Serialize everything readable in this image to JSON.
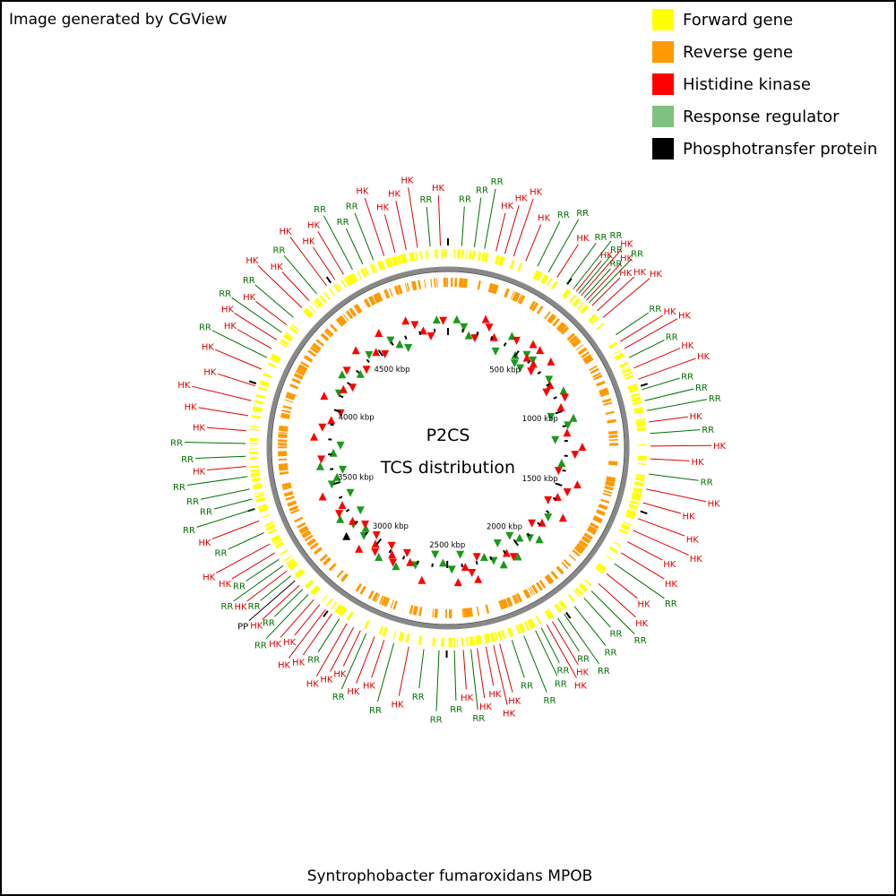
{
  "credit_text": "Image generated by CGView",
  "caption": "Syntrophobacter fumaroxidans MPOB",
  "center": {
    "line1": "P2CS",
    "line2": "TCS distribution"
  },
  "legend": [
    {
      "label": "Forward gene",
      "color": "#ffff00"
    },
    {
      "label": "Reverse gene",
      "color": "#ff9900"
    },
    {
      "label": "Histidine kinase",
      "color": "#ff0000"
    },
    {
      "label": "Response regulator",
      "color": "#80c080"
    },
    {
      "label": "Phosphotransfer protein",
      "color": "#000000"
    }
  ],
  "genome": {
    "length_kbp": 4990
  },
  "ticks": [
    "500 kbp",
    "1000 kbp",
    "1500 kbp",
    "2000 kbp",
    "2500 kbp",
    "3000 kbp",
    "3500 kbp",
    "4000 kbp",
    "4500 kbp"
  ],
  "label_colors": {
    "HK": "#e00000",
    "RR": "#007000",
    "PP": "#000000"
  },
  "features": [
    {
      "kbp": 54,
      "type": "RR"
    },
    {
      "kbp": 104,
      "type": "RR"
    },
    {
      "kbp": 144,
      "type": "RR"
    },
    {
      "kbp": 190,
      "type": "HK"
    },
    {
      "kbp": 226,
      "type": "HK"
    },
    {
      "kbp": 262,
      "type": "HK"
    },
    {
      "kbp": 313,
      "type": "HK"
    },
    {
      "kbp": 364,
      "type": "RR"
    },
    {
      "kbp": 412,
      "type": "RR"
    },
    {
      "kbp": 452,
      "type": "HK"
    },
    {
      "kbp": 497,
      "type": "RR"
    },
    {
      "kbp": 530,
      "type": "RR"
    },
    {
      "kbp": 545,
      "type": "HK"
    },
    {
      "kbp": 558,
      "type": "RR"
    },
    {
      "kbp": 570,
      "type": "HK"
    },
    {
      "kbp": 585,
      "type": "RR"
    },
    {
      "kbp": 598,
      "type": "HK"
    },
    {
      "kbp": 612,
      "type": "RR"
    },
    {
      "kbp": 628,
      "type": "HK"
    },
    {
      "kbp": 657,
      "type": "HK"
    },
    {
      "kbp": 692,
      "type": "HK"
    },
    {
      "kbp": 776,
      "type": "RR"
    },
    {
      "kbp": 808,
      "type": "HK"
    },
    {
      "kbp": 840,
      "type": "HK"
    },
    {
      "kbp": 880,
      "type": "RR"
    },
    {
      "kbp": 925,
      "type": "HK"
    },
    {
      "kbp": 972,
      "type": "HK"
    },
    {
      "kbp": 1015,
      "type": "RR"
    },
    {
      "kbp": 1060,
      "type": "RR"
    },
    {
      "kbp": 1100,
      "type": "RR"
    },
    {
      "kbp": 1145,
      "type": "HK"
    },
    {
      "kbp": 1190,
      "type": "RR"
    },
    {
      "kbp": 1240,
      "type": "HK"
    },
    {
      "kbp": 1290,
      "type": "HK"
    },
    {
      "kbp": 1350,
      "type": "RR"
    },
    {
      "kbp": 1410,
      "type": "HK"
    },
    {
      "kbp": 1465,
      "type": "HK"
    },
    {
      "kbp": 1530,
      "type": "HK"
    },
    {
      "kbp": 1580,
      "type": "HK"
    },
    {
      "kbp": 1630,
      "type": "HK"
    },
    {
      "kbp": 1680,
      "type": "HK"
    },
    {
      "kbp": 1730,
      "type": "RR"
    },
    {
      "kbp": 1780,
      "type": "HK"
    },
    {
      "kbp": 1830,
      "type": "HK"
    },
    {
      "kbp": 1870,
      "type": "RR"
    },
    {
      "kbp": 1910,
      "type": "RR"
    },
    {
      "kbp": 1960,
      "type": "RR"
    },
    {
      "kbp": 2010,
      "type": "RR"
    },
    {
      "kbp": 2040,
      "type": "RR"
    },
    {
      "kbp": 2065,
      "type": "HK"
    },
    {
      "kbp": 2090,
      "type": "HK"
    },
    {
      "kbp": 2115,
      "type": "RR"
    },
    {
      "kbp": 2140,
      "type": "RR"
    },
    {
      "kbp": 2190,
      "type": "RR"
    },
    {
      "kbp": 2240,
      "type": "RR"
    },
    {
      "kbp": 2290,
      "type": "HK"
    },
    {
      "kbp": 2315,
      "type": "HK"
    },
    {
      "kbp": 2345,
      "type": "HK"
    },
    {
      "kbp": 2380,
      "type": "HK"
    },
    {
      "kbp": 2405,
      "type": "RR"
    },
    {
      "kbp": 2435,
      "type": "HK"
    },
    {
      "kbp": 2470,
      "type": "RR"
    },
    {
      "kbp": 2530,
      "type": "RR"
    },
    {
      "kbp": 2590,
      "type": "RR"
    },
    {
      "kbp": 2650,
      "type": "HK"
    },
    {
      "kbp": 2710,
      "type": "RR"
    },
    {
      "kbp": 2750,
      "type": "HK"
    },
    {
      "kbp": 2790,
      "type": "HK"
    },
    {
      "kbp": 2825,
      "type": "RR"
    },
    {
      "kbp": 2850,
      "type": "HK"
    },
    {
      "kbp": 2880,
      "type": "HK"
    },
    {
      "kbp": 2910,
      "type": "HK"
    },
    {
      "kbp": 2945,
      "type": "RR"
    },
    {
      "kbp": 2980,
      "type": "HK"
    },
    {
      "kbp": 3010,
      "type": "HK"
    },
    {
      "kbp": 3040,
      "type": "HK"
    },
    {
      "kbp": 3070,
      "type": "HK"
    },
    {
      "kbp": 3100,
      "type": "RR"
    },
    {
      "kbp": 3130,
      "type": "RR"
    },
    {
      "kbp": 3150,
      "type": "HK"
    },
    {
      "kbp": 3175,
      "type": "PP"
    },
    {
      "kbp": 3200,
      "type": "RR"
    },
    {
      "kbp": 3225,
      "type": "HK"
    },
    {
      "kbp": 3250,
      "type": "RR"
    },
    {
      "kbp": 3280,
      "type": "RR"
    },
    {
      "kbp": 3310,
      "type": "HK"
    },
    {
      "kbp": 3350,
      "type": "HK"
    },
    {
      "kbp": 3400,
      "type": "RR"
    },
    {
      "kbp": 3450,
      "type": "HK"
    },
    {
      "kbp": 3500,
      "type": "RR"
    },
    {
      "kbp": 3540,
      "type": "RR"
    },
    {
      "kbp": 3580,
      "type": "RR"
    },
    {
      "kbp": 3630,
      "type": "RR"
    },
    {
      "kbp": 3670,
      "type": "HK"
    },
    {
      "kbp": 3710,
      "type": "RR"
    },
    {
      "kbp": 3760,
      "type": "RR"
    },
    {
      "kbp": 3810,
      "type": "HK"
    },
    {
      "kbp": 3870,
      "type": "HK"
    },
    {
      "kbp": 3930,
      "type": "HK"
    },
    {
      "kbp": 3990,
      "type": "HK"
    },
    {
      "kbp": 4060,
      "type": "HK"
    },
    {
      "kbp": 4110,
      "type": "RR"
    },
    {
      "kbp": 4150,
      "type": "HK"
    },
    {
      "kbp": 4190,
      "type": "HK"
    },
    {
      "kbp": 4225,
      "type": "RR"
    },
    {
      "kbp": 4260,
      "type": "HK"
    },
    {
      "kbp": 4300,
      "type": "RR"
    },
    {
      "kbp": 4350,
      "type": "HK"
    },
    {
      "kbp": 4390,
      "type": "HK"
    },
    {
      "kbp": 4430,
      "type": "RR"
    },
    {
      "kbp": 4480,
      "type": "HK"
    },
    {
      "kbp": 4520,
      "type": "HK"
    },
    {
      "kbp": 4560,
      "type": "HK"
    },
    {
      "kbp": 4600,
      "type": "RR"
    },
    {
      "kbp": 4645,
      "type": "RR"
    },
    {
      "kbp": 4690,
      "type": "RR"
    },
    {
      "kbp": 4735,
      "type": "HK"
    },
    {
      "kbp": 4780,
      "type": "HK"
    },
    {
      "kbp": 4825,
      "type": "HK"
    },
    {
      "kbp": 4870,
      "type": "HK"
    },
    {
      "kbp": 4920,
      "type": "RR"
    },
    {
      "kbp": 4960,
      "type": "HK"
    }
  ]
}
